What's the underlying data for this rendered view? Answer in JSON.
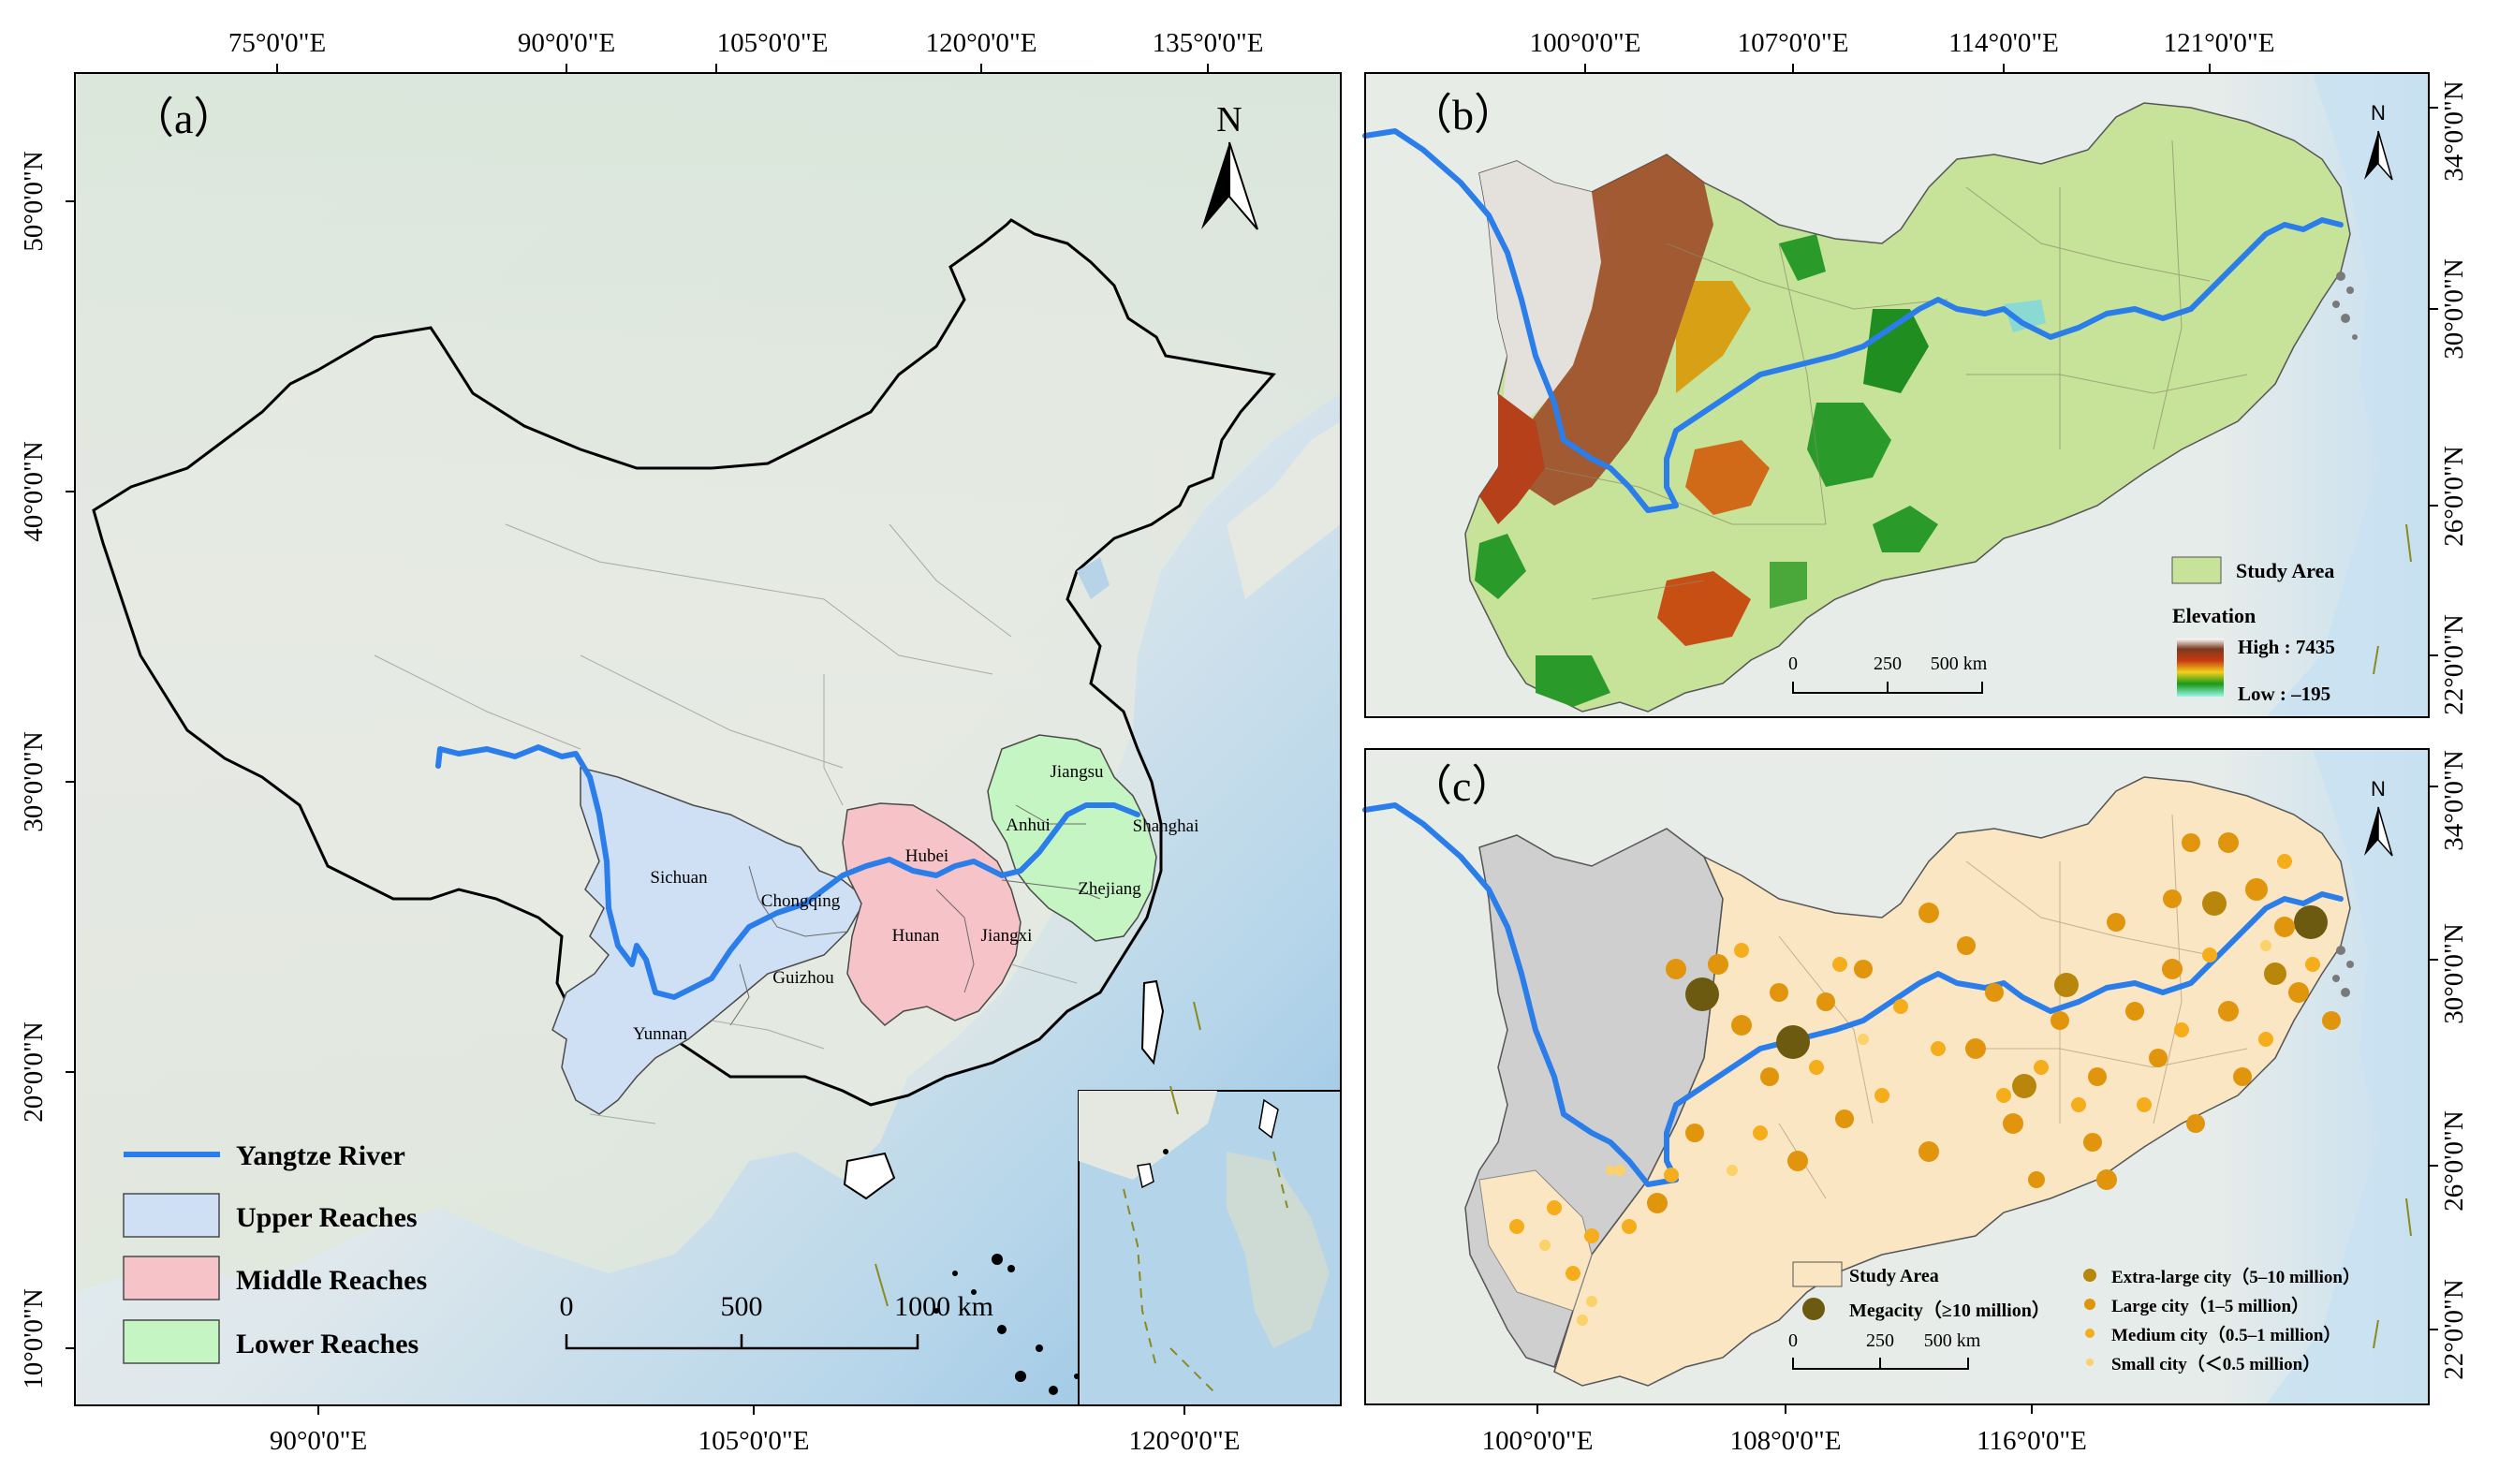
{
  "panel_a": {
    "label": "（a）",
    "top_ticks": [
      "75°0'0\"E",
      "90°0'0\"E",
      "105°0'0\"E",
      "120°0'0\"E",
      "135°0'0\"E"
    ],
    "bottom_ticks": [
      "90°0'0\"E",
      "105°0'0\"E",
      "120°0'0\"E"
    ],
    "left_ticks": [
      "50°0'0\"N",
      "40°0'0\"N",
      "30°0'0\"N",
      "20°0'0\"N",
      "10°0'0\"N"
    ],
    "north": "N",
    "provinces": {
      "sichuan": "Sichuan",
      "chongqing": "Chongqing",
      "guizhou": "Guizhou",
      "yunnan": "Yunnan",
      "hubei": "Hubei",
      "hunan": "Hunan",
      "jiangxi": "Jiangxi",
      "anhui": "Anhui",
      "jiangsu": "Jiangsu",
      "shanghai": "Shanghai",
      "zhejiang": "Zhejiang"
    },
    "legend": {
      "river": "Yangtze River",
      "upper": "Upper Reaches",
      "middle": "Middle Reaches",
      "lower": "Lower Reaches"
    },
    "scale": {
      "t0": "0",
      "t1": "500",
      "t2": "1000 km"
    },
    "colors": {
      "upper": "#cfe0f5",
      "middle": "#f6c3c8",
      "lower": "#c6f5c4",
      "river": "#2b7de9"
    }
  },
  "panel_b": {
    "label": "（b）",
    "top_ticks": [
      "100°0'0\"E",
      "107°0'0\"E",
      "114°0'0\"E",
      "121°0'0\"E"
    ],
    "right_ticks": [
      "34°0'0\"N",
      "30°0'0\"N",
      "26°0'0\"N",
      "22°0'0\"N"
    ],
    "north": "N",
    "legend": {
      "study_area": "Study Area",
      "elevation": "Elevation",
      "high": "High : 7435",
      "low": "Low : –195"
    },
    "scale": {
      "t0": "0",
      "t1": "250",
      "t2": "500 km"
    }
  },
  "panel_c": {
    "label": "（c）",
    "bottom_ticks": [
      "100°0'0\"E",
      "108°0'0\"E",
      "116°0'0\"E"
    ],
    "right_ticks": [
      "34°0'0\"N",
      "30°0'0\"N",
      "26°0'0\"N",
      "22°0'0\"N"
    ],
    "north": "N",
    "legend": {
      "study_area": "Study Area",
      "megacity": "Megacity（≥10 million）",
      "extra_large": "Extra-large city（5–10 million）",
      "large": "Large city（1–5 million）",
      "medium": "Medium city（0.5–1 million）",
      "small": "Small city（＜0.5 million）"
    },
    "scale": {
      "t0": "0",
      "t1": "250",
      "t2": "500 km"
    },
    "colors": {
      "megacity": "#6b5a10",
      "extra_large": "#b8860b",
      "large": "#e0950c",
      "medium": "#f5ad1c",
      "small": "#fbd26a"
    }
  }
}
